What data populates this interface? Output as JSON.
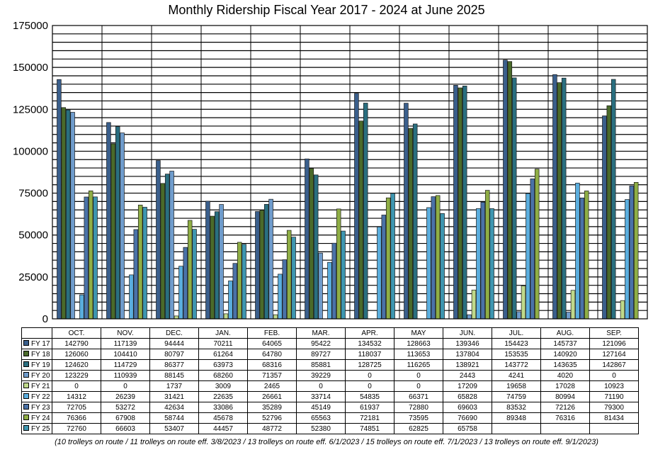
{
  "chart_data": {
    "type": "bar",
    "title": "Monthly Ridership Fiscal Year 2017 - 2024 at June 2025",
    "ylim": [
      0,
      175000
    ],
    "yticks": [
      0,
      25000,
      50000,
      75000,
      100000,
      125000,
      150000,
      175000
    ],
    "ytick_labels": [
      "0",
      "25000",
      "50000",
      "75000",
      "100000",
      "125000",
      "150000",
      "175000"
    ],
    "grid_step": 5000,
    "categories": [
      "OCT.",
      "NOV.",
      "DEC.",
      "JAN.",
      "FEB.",
      "MAR.",
      "APR.",
      "MAY",
      "JUN.",
      "JUL.",
      "AUG.",
      "SEP."
    ],
    "series": [
      {
        "name": "FY 17",
        "color": "#3a5f8c",
        "values": [
          142790,
          117139,
          94444,
          70211,
          64065,
          95422,
          134532,
          128663,
          139346,
          154423,
          145737,
          121096
        ],
        "labels": [
          "142790",
          "117139",
          "94444",
          "70211",
          "64065",
          "95422",
          "134532",
          "128663",
          "139346",
          "154423",
          "145737",
          "121096"
        ]
      },
      {
        "name": "FY 18",
        "color": "#4a6a2a",
        "values": [
          126060,
          104410,
          80797,
          61264,
          64780,
          89727,
          118037,
          113653,
          137804,
          153535,
          140920,
          127164
        ],
        "labels": [
          "126060",
          "104410",
          "80797",
          "61264",
          "64780",
          "89727",
          "118037",
          "113653",
          "137804",
          "153535",
          "140920",
          "127164"
        ]
      },
      {
        "name": "FY 19",
        "color": "#2a6f80",
        "values": [
          124620,
          114729,
          86377,
          63973,
          68316,
          85881,
          128725,
          116265,
          138921,
          143772,
          143635,
          142867
        ],
        "labels": [
          "124620",
          "114729",
          "86377",
          "63973",
          "68316",
          "85881",
          "128725",
          "116265",
          "138921",
          "143772",
          "143635",
          "142867"
        ]
      },
      {
        "name": "FY 20",
        "color": "#6f9ccc",
        "values": [
          123229,
          110939,
          88145,
          68260,
          71357,
          39229,
          0,
          0,
          2443,
          4241,
          4020,
          0
        ],
        "labels": [
          "123229",
          "110939",
          "88145",
          "68260",
          "71357",
          "39229",
          "0",
          "0",
          "2443",
          "4241",
          "4020",
          "0"
        ]
      },
      {
        "name": "FY 21",
        "color": "#bfd98a",
        "values": [
          0,
          0,
          1737,
          3009,
          2465,
          0,
          0,
          0,
          17209,
          19658,
          17028,
          10923
        ],
        "labels": [
          "0",
          "0",
          "1737",
          "3009",
          "2465",
          "0",
          "0",
          "0",
          "17209",
          "19658",
          "17028",
          "10923"
        ]
      },
      {
        "name": "FY 22",
        "color": "#5aaede",
        "values": [
          14312,
          26239,
          31421,
          22635,
          26661,
          33714,
          54835,
          66371,
          65828,
          74759,
          80994,
          71190
        ],
        "labels": [
          "14312",
          "26239",
          "31421",
          "22635",
          "26661",
          "33714",
          "54835",
          "66371",
          "65828",
          "74759",
          "80994",
          "71190"
        ]
      },
      {
        "name": "FY 23",
        "color": "#4a72a8",
        "values": [
          72705,
          53272,
          42634,
          33086,
          35289,
          45149,
          61937,
          72880,
          69603,
          83532,
          72126,
          79300
        ],
        "labels": [
          "72705",
          "53272",
          "42634",
          "33086",
          "35289",
          "45149",
          "61937",
          "72880",
          "69603",
          "83532",
          "72126",
          "79300"
        ]
      },
      {
        "name": "FY 24",
        "color": "#8fae45",
        "values": [
          76366,
          67908,
          58744,
          45678,
          52796,
          65563,
          72181,
          73595,
          76690,
          89348,
          76316,
          81434
        ],
        "labels": [
          "76366",
          "67908",
          "58744",
          "45678",
          "52796",
          "65563",
          "72181",
          "73595",
          "76690",
          "89348",
          "76316",
          "81434"
        ]
      },
      {
        "name": "FY 25",
        "color": "#3e96b0",
        "values": [
          72760,
          66603,
          53407,
          44457,
          48772,
          52380,
          74851,
          62825,
          65758,
          null,
          null,
          null
        ],
        "labels": [
          "72760",
          "66603",
          "53407",
          "44457",
          "48772",
          "52380",
          "74851",
          "62825",
          "65758",
          "",
          "",
          ""
        ]
      }
    ]
  },
  "footnote": "(10 trolleys on route / 11 trolleys on route eff. 3/8/2023 / 13 trolleys on route eff. 6/1/2023 / 15 trolleys on route eff. 7/1/2023 / 13 trolleys on route eff. 9/1/2023)"
}
